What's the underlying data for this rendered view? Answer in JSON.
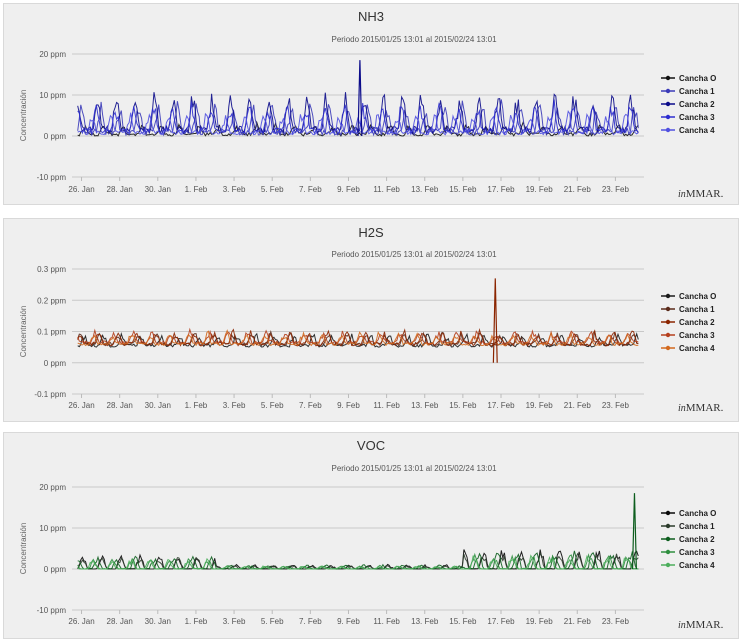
{
  "chart_data": [
    {
      "type": "line",
      "title": "NH3",
      "subtitle": "Periodo 2015/01/25 13:01 al 2015/02/24 13:01",
      "ylabel": "Concentración",
      "yticks": [
        {
          "v": 20,
          "label": "20 ppm"
        },
        {
          "v": 10,
          "label": "10 ppm"
        },
        {
          "v": 0,
          "label": "0 ppm"
        },
        {
          "v": -10,
          "label": "-10 ppm"
        }
      ],
      "ylim": [
        -10,
        20
      ],
      "xticks": [
        "26. Jan",
        "28. Jan",
        "30. Jan",
        "1. Feb",
        "3. Feb",
        "5. Feb",
        "7. Feb",
        "9. Feb",
        "11. Feb",
        "13. Feb",
        "15. Feb",
        "17. Feb",
        "19. Feb",
        "21. Feb",
        "23. Feb"
      ],
      "xrange_days": [
        25.5,
        55.5
      ],
      "credit_prefix": "in",
      "credit_name": "MMAR.",
      "series": [
        {
          "name": "Cancha O",
          "color": "#111111",
          "base": 0.4,
          "amp": 2.0,
          "noise": 0.8,
          "seed": 11
        },
        {
          "name": "Cancha 1",
          "color": "#3a3ab8",
          "base": 1.0,
          "amp": 6.0,
          "noise": 1.6,
          "seed": 23
        },
        {
          "name": "Cancha 2",
          "color": "#0b0b8a",
          "base": 1.5,
          "amp": 7.5,
          "noise": 1.8,
          "seed": 37
        },
        {
          "name": "Cancha 3",
          "color": "#2d2dd0",
          "base": 1.2,
          "amp": 5.5,
          "noise": 1.4,
          "seed": 41
        },
        {
          "name": "Cancha 4",
          "color": "#5050e0",
          "base": 0.8,
          "amp": 4.0,
          "noise": 1.0,
          "seed": 59
        }
      ],
      "spike": {
        "day": 40.6,
        "value": 18.5
      }
    },
    {
      "type": "line",
      "title": "H2S",
      "subtitle": "Periodo 2015/01/25 13:01 al 2015/02/24 13:01",
      "ylabel": "Concentración",
      "yticks": [
        {
          "v": 0.3,
          "label": "0.3 ppm"
        },
        {
          "v": 0.2,
          "label": "0.2 ppm"
        },
        {
          "v": 0.1,
          "label": "0.1 ppm"
        },
        {
          "v": 0,
          "label": "0 ppm"
        },
        {
          "v": -0.1,
          "label": "-0.1 ppm"
        }
      ],
      "ylim": [
        -0.1,
        0.3
      ],
      "xticks": [
        "26. Jan",
        "28. Jan",
        "30. Jan",
        "1. Feb",
        "3. Feb",
        "5. Feb",
        "7. Feb",
        "9. Feb",
        "11. Feb",
        "13. Feb",
        "15. Feb",
        "17. Feb",
        "19. Feb",
        "21. Feb",
        "23. Feb"
      ],
      "xrange_days": [
        25.5,
        55.5
      ],
      "credit_prefix": "in",
      "credit_name": "MMAR.",
      "series": [
        {
          "name": "Cancha O",
          "color": "#1a1a1a",
          "base": 0.055,
          "amp": 0.03,
          "noise": 0.01,
          "seed": 13
        },
        {
          "name": "Cancha 1",
          "color": "#5a2a1a",
          "base": 0.06,
          "amp": 0.03,
          "noise": 0.01,
          "seed": 29
        },
        {
          "name": "Cancha 2",
          "color": "#8b2500",
          "base": 0.06,
          "amp": 0.035,
          "noise": 0.012,
          "seed": 31
        },
        {
          "name": "Cancha 3",
          "color": "#b5401e",
          "base": 0.065,
          "amp": 0.03,
          "noise": 0.01,
          "seed": 47
        },
        {
          "name": "Cancha 4",
          "color": "#d2691e",
          "base": 0.06,
          "amp": 0.03,
          "noise": 0.01,
          "seed": 53
        }
      ],
      "spike": {
        "day": 47.7,
        "value": 0.27
      }
    },
    {
      "type": "line",
      "title": "VOC",
      "subtitle": "Periodo 2015/01/25 13:01 al 2015/02/24 13:01",
      "ylabel": "Concentración",
      "yticks": [
        {
          "v": 20,
          "label": "20 ppm"
        },
        {
          "v": 10,
          "label": "10 ppm"
        },
        {
          "v": 0,
          "label": "0 ppm"
        },
        {
          "v": -10,
          "label": "-10 ppm"
        }
      ],
      "ylim": [
        -10,
        20
      ],
      "xticks": [
        "26. Jan",
        "28. Jan",
        "30. Jan",
        "1. Feb",
        "3. Feb",
        "5. Feb",
        "7. Feb",
        "9. Feb",
        "11. Feb",
        "13. Feb",
        "15. Feb",
        "17. Feb",
        "19. Feb",
        "21. Feb",
        "23. Feb"
      ],
      "xrange_days": [
        25.5,
        55.5
      ],
      "credit_prefix": "in",
      "credit_name": "MMAR.",
      "series": [
        {
          "name": "Cancha O",
          "color": "#0a0a0a",
          "base": 0.0,
          "amp": 3.0,
          "noise": 0.3,
          "seed": 17
        },
        {
          "name": "Cancha 1",
          "color": "#2b3b2b",
          "base": 0.0,
          "amp": 2.5,
          "noise": 0.3,
          "seed": 19
        },
        {
          "name": "Cancha 2",
          "color": "#0d5e1e",
          "base": 0.0,
          "amp": 2.8,
          "noise": 0.3,
          "seed": 43
        },
        {
          "name": "Cancha 3",
          "color": "#2f8f3f",
          "base": 0.0,
          "amp": 2.2,
          "noise": 0.3,
          "seed": 61
        },
        {
          "name": "Cancha 4",
          "color": "#4cae5c",
          "base": 0.0,
          "amp": 2.0,
          "noise": 0.3,
          "seed": 67
        }
      ],
      "spike": {
        "day": 55.0,
        "value": 18.5
      }
    }
  ]
}
